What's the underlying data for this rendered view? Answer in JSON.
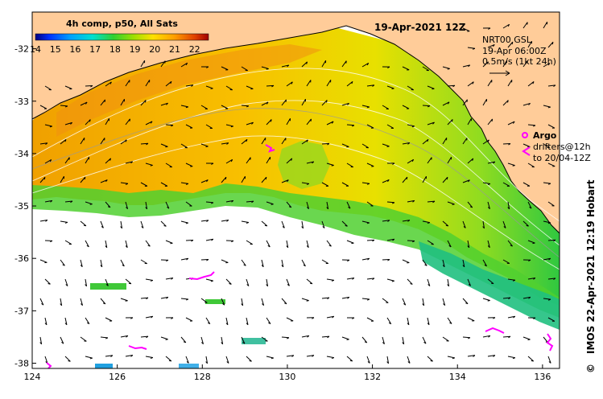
{
  "colorbar": {
    "title": "4h comp, p50, All Sats",
    "ticks": [
      "14",
      "15",
      "16",
      "17",
      "18",
      "19",
      "20",
      "21",
      "22"
    ],
    "tick_values": [
      14,
      15,
      16,
      17,
      18,
      19,
      20,
      21,
      22
    ],
    "range": [
      14,
      22.7
    ],
    "colors": [
      "#000080",
      "#0030ff",
      "#00a0ff",
      "#00e0d0",
      "#30d030",
      "#a0e000",
      "#ffe000",
      "#ffa000",
      "#e04000",
      "#a00000"
    ]
  },
  "map": {
    "date_title": "19-Apr-2021 12Z",
    "current_source": "NRT00 GSL",
    "current_time": "19-Apr 06:00Z",
    "scale_label": "0.5m/s (1kt 24h)",
    "credit": "IMOS 22-Apr-2021 12:19 Hobart",
    "copyright_symbol": "©",
    "lat_ticks": [
      "-32",
      "-33",
      "-34",
      "-35",
      "-36",
      "-37",
      "-38"
    ],
    "lat_values": [
      -32,
      -33,
      -34,
      -35,
      -36,
      -37,
      -38
    ],
    "lon_ticks": [
      "124",
      "126",
      "128",
      "130",
      "132",
      "134",
      "136"
    ],
    "lon_values": [
      124,
      126,
      128,
      130,
      132,
      134,
      136
    ],
    "lon_range": [
      124,
      136.4
    ],
    "lat_range": [
      -38.1,
      -31.3
    ],
    "land_color": "#ffcc99",
    "cloud_color": "#ffffff"
  },
  "legend": {
    "argo_label": "Argo",
    "drifters_label": "drifters@12h",
    "drifters_to_label": "to 20/04-12Z",
    "argo_color": "#ff00ff",
    "drifter_color": "#ff00ff"
  }
}
